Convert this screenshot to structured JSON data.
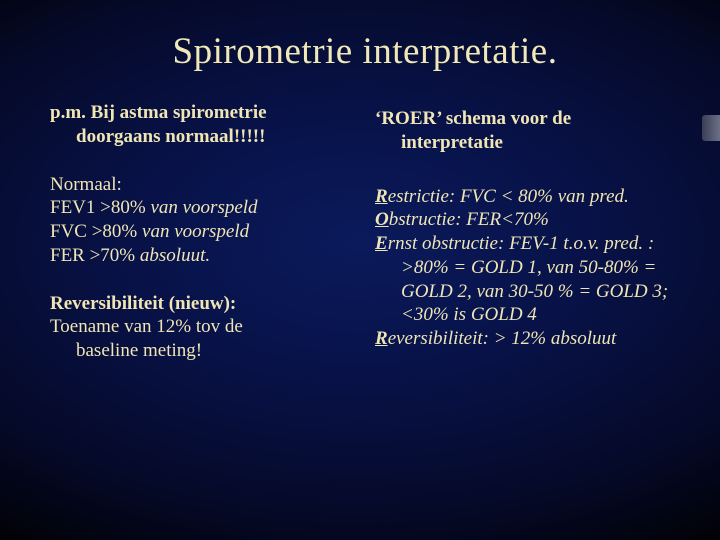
{
  "colors": {
    "text": "#efe5b5",
    "bg_center": "#0a1a5c",
    "bg_outer": "#000000"
  },
  "title": "Spirometrie interpretatie.",
  "left": {
    "lead_l1": "p.m. Bij astma spirometrie",
    "lead_l2": "doorgaans normaal!!!!!",
    "normaal_head": "Normaal:",
    "fev1_a": "FEV1 >80% ",
    "fev1_b": "van voorspeld",
    "fvc_a": "FVC >80% ",
    "fvc_b": "van voorspeld",
    "fer_a": "FER >70% ",
    "fer_b": "absoluut.",
    "rev_head": "Reversibiliteit (nieuw):",
    "rev_l1": "Toename van 12% tov de",
    "rev_l2": "baseline meting!"
  },
  "right": {
    "head_l1": "‘ROER’ schema voor de",
    "head_l2": "interpretatie",
    "r_u": "R",
    "r_rest": "estrictie: FVC <  80% van pred.",
    "o_u": "O",
    "o_rest": "bstructie: FER<70%",
    "e_u": "E",
    "e_rest": "rnst obstructie: FEV-1 t.o.v. pred. : >80% = GOLD 1, van 50-80% = GOLD 2, van 30-50 % = GOLD 3; <30% is GOLD 4",
    "r2_u": "R",
    "r2_rest": "eversibiliteit: > 12% absoluut"
  }
}
